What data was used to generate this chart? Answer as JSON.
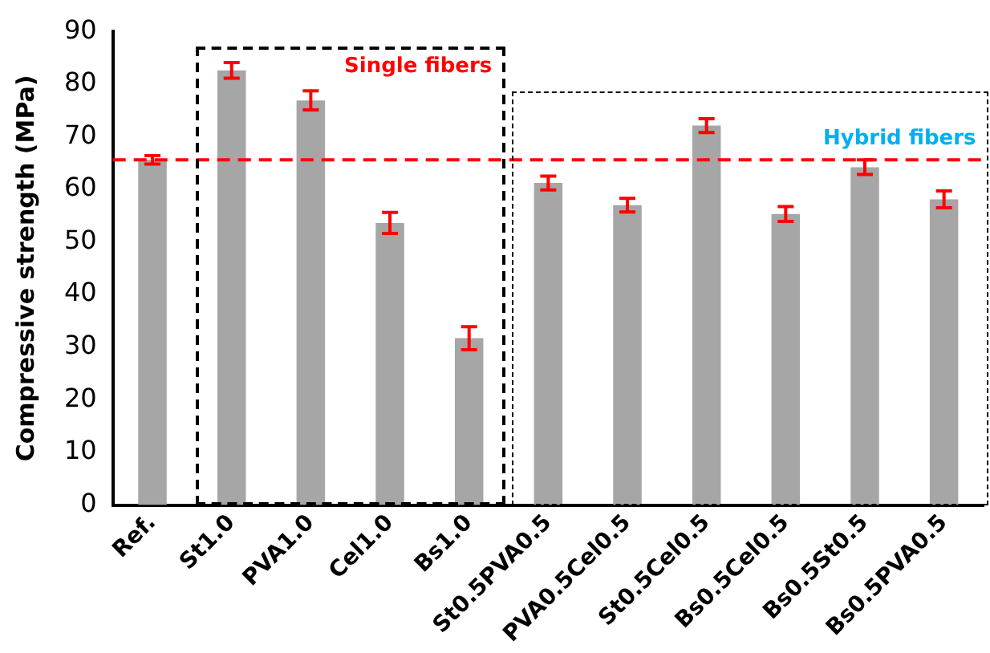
{
  "chart_data": {
    "type": "bar",
    "ylabel": "Compressive strength (MPa)",
    "categories": [
      "Ref.",
      "St1.0",
      "PVA1.0",
      "Cel1.0",
      "Bs1.0",
      "St0.5PVA0.5",
      "PVA0.5Cel0.5",
      "St0.5Cel0.5",
      "Bs0.5Cel0.5",
      "Bs0.5St0.5",
      "Bs0.5PVA0.5"
    ],
    "values": [
      65.6,
      82.6,
      76.9,
      53.6,
      31.7,
      61.2,
      57.0,
      72.1,
      55.3,
      64.2,
      58.1
    ],
    "errors": [
      0.8,
      1.5,
      1.8,
      2.0,
      2.2,
      1.3,
      1.3,
      1.3,
      1.4,
      1.4,
      1.6
    ],
    "color": "#a6a6a6",
    "ylim": [
      0,
      90
    ],
    "yticks": [
      0,
      10,
      20,
      30,
      40,
      50,
      60,
      70,
      80,
      90
    ],
    "grid": false,
    "ref_lines": [
      {
        "axis": "y",
        "value": 65.6,
        "color": "#ff0000",
        "line_style": "dashed"
      }
    ],
    "annotations": [
      "Single fibers",
      "Hybrid fibers"
    ]
  }
}
